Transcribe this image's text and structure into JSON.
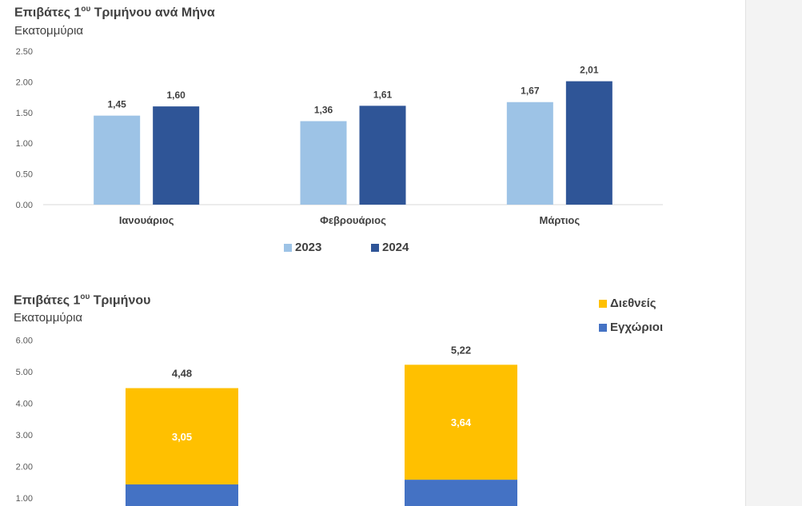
{
  "chart_data": [
    {
      "type": "bar",
      "title_main": "Επιβάτες 1",
      "title_sup": "ου",
      "title_rest": " Τριμήνου ανά Μήνα",
      "subtitle": "Εκατομμύρια",
      "categories": [
        "Ιανουάριος",
        "Φεβρουάριος",
        "Μάρτιος"
      ],
      "series": [
        {
          "name": "2023",
          "color": "#9dc3e6",
          "values": [
            1.45,
            1.36,
            1.67
          ],
          "labels": [
            "1,45",
            "1,36",
            "1,67"
          ]
        },
        {
          "name": "2024",
          "color": "#2f5597",
          "values": [
            1.6,
            1.61,
            2.01
          ],
          "labels": [
            "1,60",
            "1,61",
            "2,01"
          ]
        }
      ],
      "yticks": [
        "0.00",
        "0.50",
        "1.00",
        "1.50",
        "2.00",
        "2.50"
      ],
      "ylim": [
        0,
        2.5
      ],
      "grid": false,
      "legend": "bottom"
    },
    {
      "type": "bar",
      "stacked": true,
      "title_main": "Επιβάτες 1",
      "title_sup": "ου",
      "title_rest": " Τριμήνου",
      "subtitle": "Εκατομμύρια",
      "categories": [
        "",
        ""
      ],
      "series": [
        {
          "name": "Εγχώριοι",
          "color": "#4472c4",
          "values": [
            1.43,
            1.58
          ]
        },
        {
          "name": "Διεθνείς",
          "color": "#ffc000",
          "values": [
            3.05,
            3.64
          ],
          "labels": [
            "3,05",
            "3,64"
          ]
        }
      ],
      "totals": [
        4.48,
        5.22
      ],
      "total_labels": [
        "4,48",
        "5,22"
      ],
      "yticks": [
        "1.00",
        "2.00",
        "3.00",
        "4.00",
        "5.00",
        "6.00"
      ],
      "ylim": [
        0,
        6
      ],
      "grid": false,
      "legend": "top-right"
    }
  ]
}
